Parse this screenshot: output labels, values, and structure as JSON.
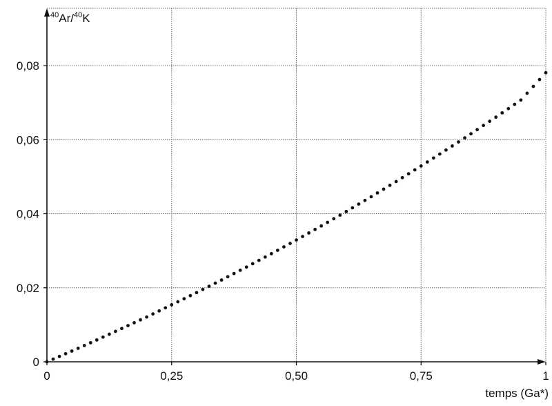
{
  "chart_data": {
    "type": "scatter",
    "title": "",
    "ylabel_parts": {
      "sup1": "40",
      "base1": "Ar/",
      "sup2": "40",
      "base2": "K"
    },
    "xlabel": "temps (Ga*)",
    "xlim": [
      0,
      1
    ],
    "ylim": [
      0,
      0.0955
    ],
    "x_ticks": [
      0,
      0.25,
      0.5,
      0.75,
      1
    ],
    "x_tick_labels": [
      "0",
      "0,25",
      "0,50",
      "0,75",
      "1"
    ],
    "y_ticks": [
      0,
      0.02,
      0.04,
      0.06,
      0.08
    ],
    "y_tick_labels": [
      "0",
      "0,02",
      "0,04",
      "0,06",
      "0,08"
    ],
    "grid": true,
    "series": [
      {
        "x": [
          0,
          0.05,
          0.1,
          0.15,
          0.2,
          0.25,
          0.3,
          0.35,
          0.4,
          0.45,
          0.5,
          0.55,
          0.6,
          0.65,
          0.7,
          0.75,
          0.8,
          0.85,
          0.9,
          0.95,
          1.0
        ],
        "values": [
          0,
          0.0029,
          0.0059,
          0.009,
          0.0121,
          0.0154,
          0.0187,
          0.0221,
          0.0256,
          0.0292,
          0.0329,
          0.0367,
          0.0406,
          0.0446,
          0.0487,
          0.0529,
          0.0572,
          0.0616,
          0.0661,
          0.0707,
          0.0781
        ]
      }
    ]
  }
}
